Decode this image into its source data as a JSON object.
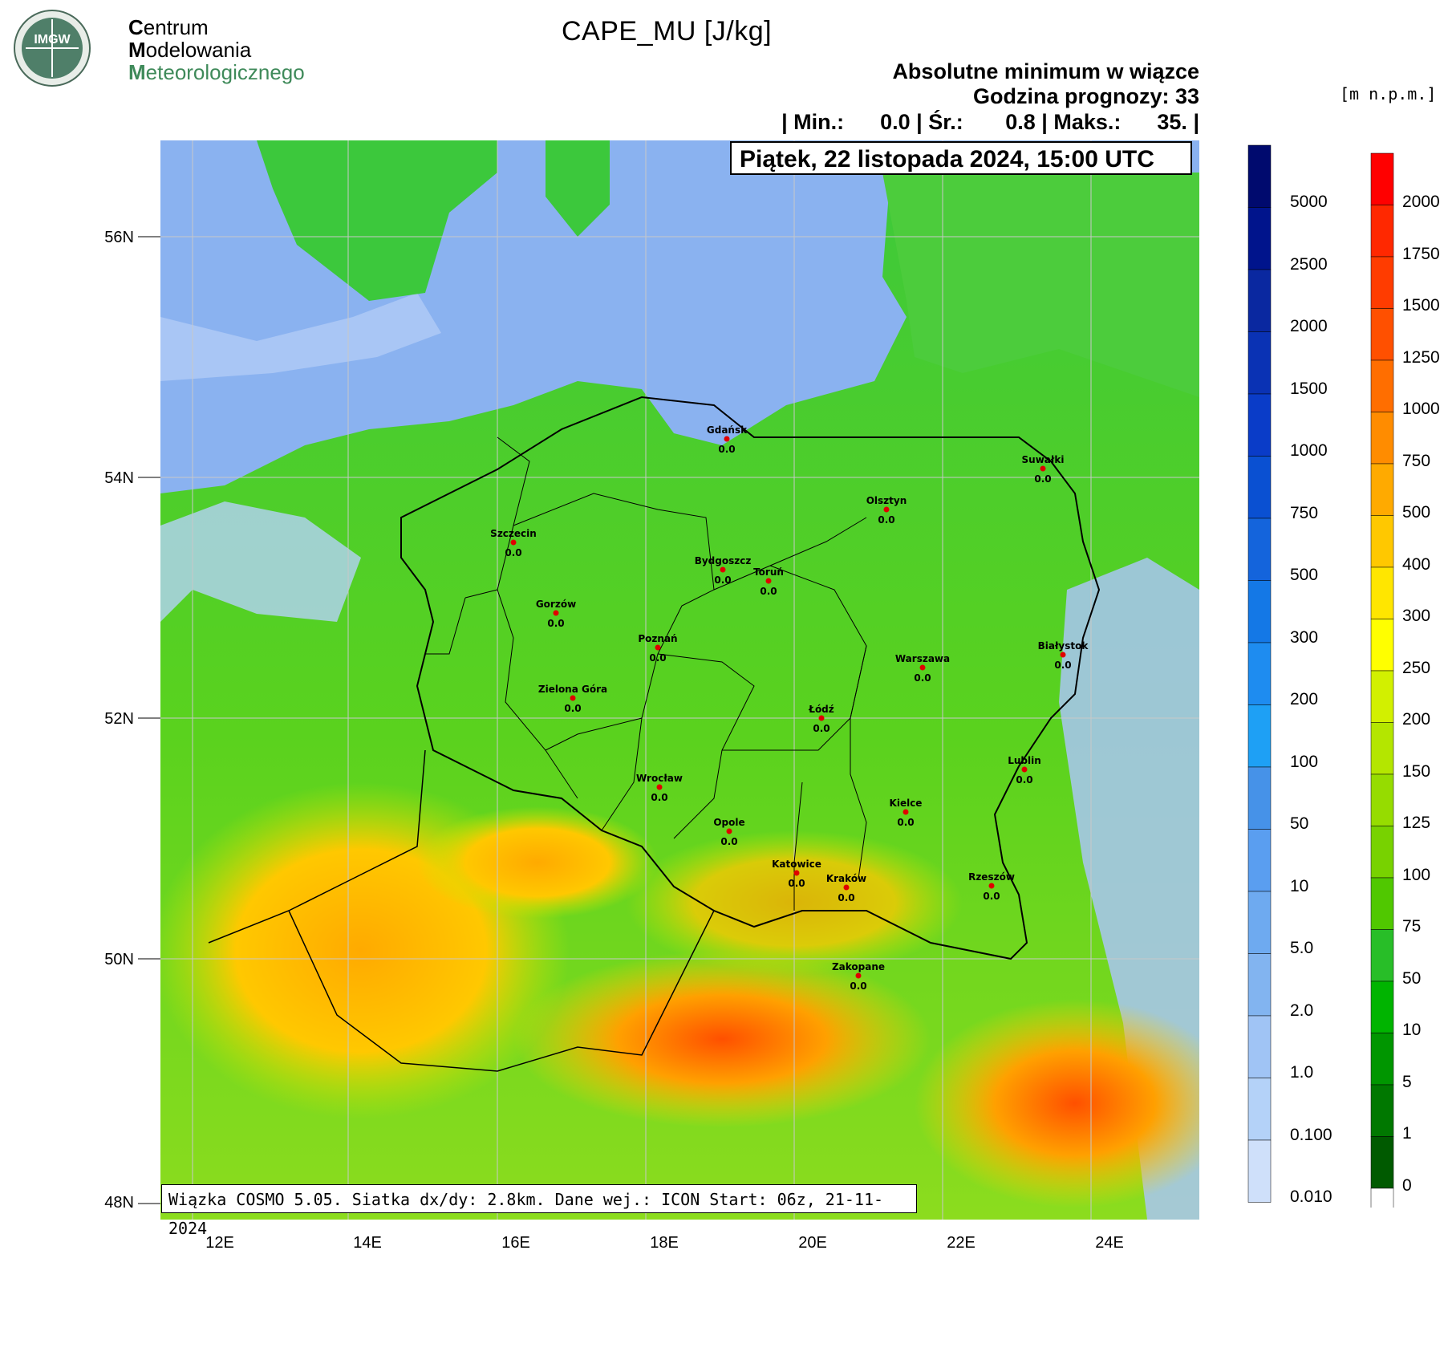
{
  "logo": {
    "badge": "IMGW",
    "line1_initial": "C",
    "line1_rest": "entrum",
    "line2_initial": "M",
    "line2_rest": "odelowania",
    "line3_initial": "M",
    "line3_rest": "eteorologicznego"
  },
  "title": "CAPE_MU [J/kg]",
  "header": {
    "line1": "Absolutne minimum w wiązce",
    "line2": "Godzina prognozy: 33",
    "stats": "| Min.:      0.0 | Śr.:       0.8 | Maks.:      35. |"
  },
  "date_box": "Piątek, 22 listopada 2024, 15:00 UTC",
  "unit_label": "[m n.p.m.]",
  "footer": "Wiązka COSMO 5.05. Siatka dx/dy: 2.8km. Dane wej.: ICON Start: 06z, 21-11-2024",
  "lat_labels": [
    "56N",
    "54N",
    "52N",
    "50N",
    "48N"
  ],
  "lon_labels": [
    "12E",
    "14E",
    "16E",
    "18E",
    "20E",
    "22E",
    "24E"
  ],
  "cape_colorbar": {
    "labels": [
      "5000",
      "2500",
      "2000",
      "1500",
      "1000",
      "750",
      "500",
      "300",
      "200",
      "100",
      "50",
      "10",
      "5.0",
      "2.0",
      "1.0",
      "0.100",
      "0.010"
    ],
    "colors": [
      "#000a6e",
      "#00148c",
      "#0a28a0",
      "#0a32b4",
      "#0a3cc8",
      "#0a50d2",
      "#1464dc",
      "#1478e6",
      "#1e8cf0",
      "#1ea0f5",
      "#4692e8",
      "#5a9ef0",
      "#6eaaf0",
      "#82b4f0",
      "#a0c4f5",
      "#b4d2f8",
      "#cfe0fa"
    ]
  },
  "terrain_colorbar": {
    "labels": [
      "2000",
      "1750",
      "1500",
      "1250",
      "1000",
      "750",
      "500",
      "400",
      "300",
      "250",
      "200",
      "150",
      "125",
      "100",
      "75",
      "50",
      "10",
      "5",
      "1",
      "0"
    ],
    "colors": [
      "#ff0000",
      "#ff2800",
      "#ff3c00",
      "#ff5000",
      "#ff6e00",
      "#ff8c00",
      "#ffaa00",
      "#ffc800",
      "#ffe600",
      "#ffff00",
      "#d2f000",
      "#b4e600",
      "#96dc00",
      "#78d200",
      "#50c800",
      "#28be28",
      "#00b400",
      "#009600",
      "#007800",
      "#005a00",
      "#ffffff"
    ]
  },
  "cities": [
    {
      "name": "Gdańsk",
      "value": "0.0"
    },
    {
      "name": "Suwałki",
      "value": "0.0"
    },
    {
      "name": "Olsztyn",
      "value": "0.0"
    },
    {
      "name": "Szczecin",
      "value": "0.0"
    },
    {
      "name": "Bydgoszcz",
      "value": "0.0"
    },
    {
      "name": "Toruń",
      "value": "0.0"
    },
    {
      "name": "Białystok",
      "value": "0.0"
    },
    {
      "name": "Gorzów",
      "value": "0.0"
    },
    {
      "name": "Poznań",
      "value": "0.0"
    },
    {
      "name": "Warszawa",
      "value": "0.0"
    },
    {
      "name": "Zielona Góra",
      "value": "0.0"
    },
    {
      "name": "Łódź",
      "value": "0.0"
    },
    {
      "name": "Lublin",
      "value": "0.0"
    },
    {
      "name": "Wrocław",
      "value": "0.0"
    },
    {
      "name": "Kielce",
      "value": "0.0"
    },
    {
      "name": "Opole",
      "value": "0.0"
    },
    {
      "name": "Katowice",
      "value": "0.0"
    },
    {
      "name": "Kraków",
      "value": "0.0"
    },
    {
      "name": "Rzeszów",
      "value": "0.0"
    },
    {
      "name": "Zakopane",
      "value": "0.0"
    }
  ]
}
